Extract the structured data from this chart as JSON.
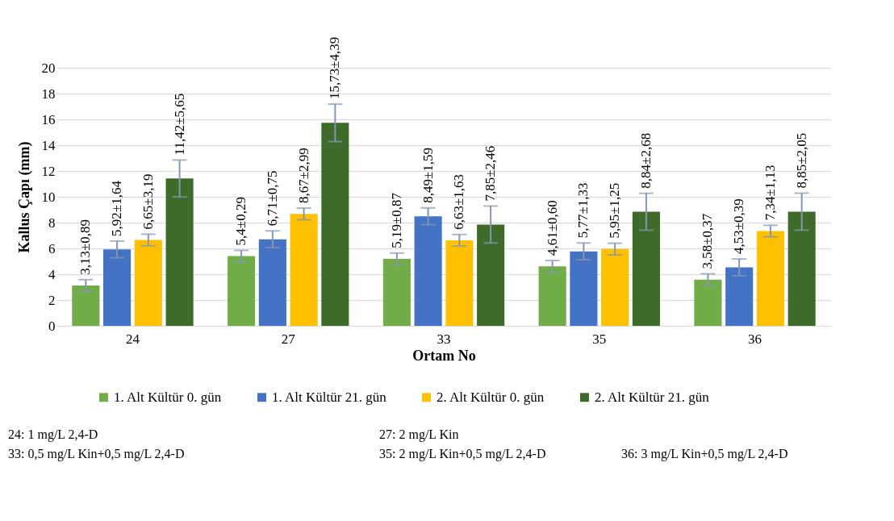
{
  "chart_data": {
    "type": "bar",
    "xlabel": "Ortam No",
    "ylabel": "Kallus Çapı (mm)",
    "categories": [
      "24",
      "27",
      "33",
      "35",
      "36"
    ],
    "series": [
      {
        "name": "1. Alt Kültür 0. gün",
        "color": "#70ad47",
        "values": [
          3.13,
          5.4,
          5.19,
          4.61,
          3.58
        ],
        "errors": [
          0.45,
          0.45,
          0.45,
          0.45,
          0.45
        ],
        "value_labels": [
          "3,13±0,89",
          "5,4±0,29",
          "5,19±0,87",
          "4,61±0,60",
          "3,58±0,37"
        ]
      },
      {
        "name": "1. Alt Kültür 21. gün",
        "color": "#4472c4",
        "values": [
          5.92,
          6.71,
          8.49,
          5.77,
          4.53
        ],
        "errors": [
          0.65,
          0.65,
          0.65,
          0.65,
          0.65
        ],
        "value_labels": [
          "5,92±1,64",
          "6,71±0,75",
          "8,49±1,59",
          "5,77±1,33",
          "4,53±0,39"
        ]
      },
      {
        "name": "2. Alt Kültür 0. gün",
        "color": "#ffc000",
        "values": [
          6.65,
          8.67,
          6.63,
          5.95,
          7.34
        ],
        "errors": [
          0.45,
          0.45,
          0.45,
          0.45,
          0.45
        ],
        "value_labels": [
          "6,65±3,19",
          "8,67±2,99",
          "6,63±1,63",
          "5,95±1,25",
          "7,34±1,13"
        ]
      },
      {
        "name": "2. Alt Kültür 21. gün",
        "color": "#3f6b2a",
        "values": [
          11.42,
          15.73,
          7.85,
          8.84,
          8.85
        ],
        "errors": [
          1.43,
          1.45,
          1.43,
          1.43,
          1.43
        ],
        "value_labels": [
          "11,42±5,65",
          "15,73±4,39",
          "7,85±2,46",
          "8,84±2,68",
          "8,85±2,05"
        ]
      }
    ],
    "ylim": [
      0,
      20
    ],
    "yticks": [
      0,
      2,
      4,
      6,
      8,
      10,
      12,
      14,
      16,
      18,
      20
    ],
    "grid": "y",
    "legend": "bottom",
    "annotations": [
      "24: 1 mg/L 2,4-D",
      "27: 2 mg/L Kin",
      "33: 0,5 mg/L Kin+0,5 mg/L 2,4-D",
      "35: 2 mg/L Kin+0,5 mg/L 2,4-D",
      "36: 3 mg/L Kin+0,5 mg/L 2,4-D"
    ]
  }
}
